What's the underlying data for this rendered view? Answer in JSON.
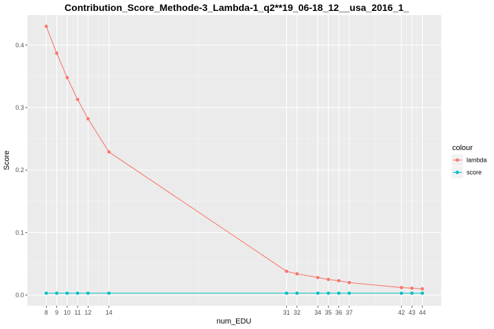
{
  "chart_data": {
    "type": "line",
    "title": "Contribution_Score_Methode-3_Lambda-1_q2**19_06-18_12__usa_2016_1_",
    "xlabel": "num_EDU",
    "ylabel": "Score",
    "x": [
      8,
      9,
      10,
      11,
      12,
      14,
      31,
      32,
      34,
      35,
      36,
      37,
      42,
      43,
      44
    ],
    "x_ticks": [
      8,
      9,
      10,
      11,
      12,
      14,
      31,
      32,
      34,
      35,
      36,
      37,
      42,
      43,
      44
    ],
    "y_ticks": [
      0.0,
      0.1,
      0.2,
      0.3,
      0.4
    ],
    "y_tick_labels": [
      "0.0",
      "0.1",
      "0.2",
      "0.3",
      "0.4"
    ],
    "xlim": [
      6.2,
      45.8
    ],
    "ylim": [
      -0.017,
      0.448
    ],
    "grid": true,
    "legend": {
      "title": "colour",
      "position": "right"
    },
    "series": [
      {
        "name": "lambda",
        "color": "#F8766D",
        "values": [
          0.43,
          0.387,
          0.348,
          0.313,
          0.282,
          0.229,
          0.038,
          0.034,
          0.028,
          0.025,
          0.023,
          0.02,
          0.012,
          0.011,
          0.01
        ]
      },
      {
        "name": "score",
        "color": "#00BFC4",
        "values": [
          0.003,
          0.003,
          0.003,
          0.003,
          0.003,
          0.003,
          0.003,
          0.003,
          0.003,
          0.003,
          0.003,
          0.003,
          0.003,
          0.003,
          0.003
        ]
      }
    ]
  }
}
